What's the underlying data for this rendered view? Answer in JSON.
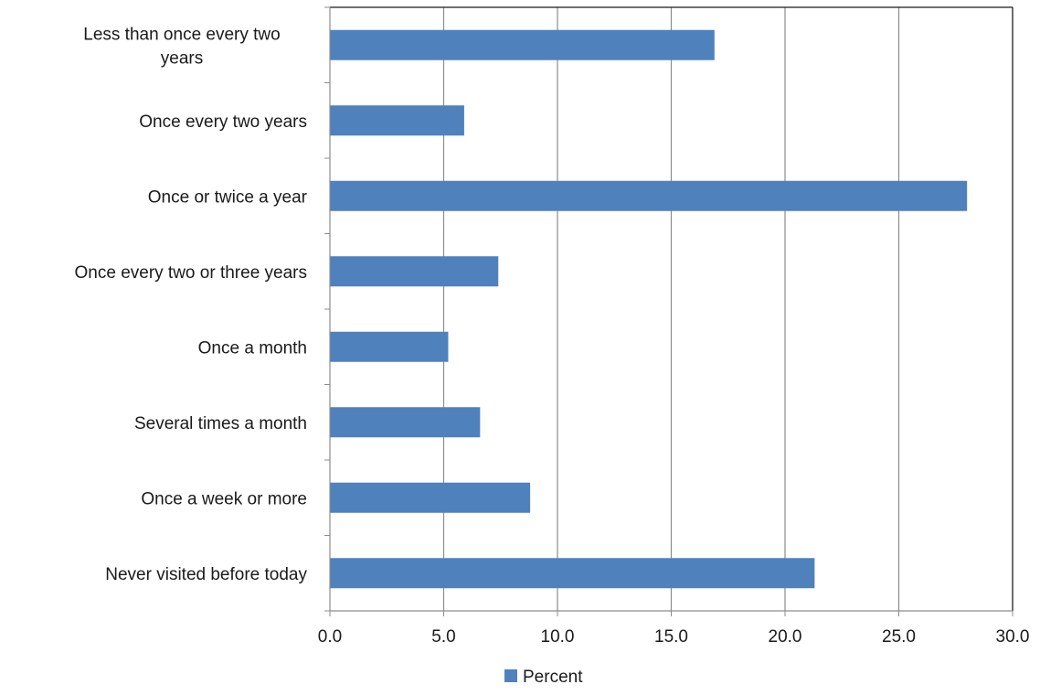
{
  "chart_data": {
    "type": "bar",
    "orientation": "horizontal",
    "categories": [
      [
        "Less than once every two",
        "years"
      ],
      [
        "Once every two years"
      ],
      [
        "Once or twice a year"
      ],
      [
        "Once every two or three years"
      ],
      [
        "Once a month"
      ],
      [
        "Several times a month"
      ],
      [
        "Once a week or more"
      ],
      [
        "Never visited before today"
      ]
    ],
    "series": [
      {
        "name": "Percent",
        "color": "#4F81BD",
        "values": [
          16.9,
          5.9,
          28.0,
          7.4,
          5.2,
          6.6,
          8.8,
          21.3
        ]
      }
    ],
    "xlim": [
      0,
      30
    ],
    "xticks": [
      "0.0",
      "5.0",
      "10.0",
      "15.0",
      "20.0",
      "25.0",
      "30.0"
    ],
    "grid": true,
    "legend": "bottom"
  }
}
